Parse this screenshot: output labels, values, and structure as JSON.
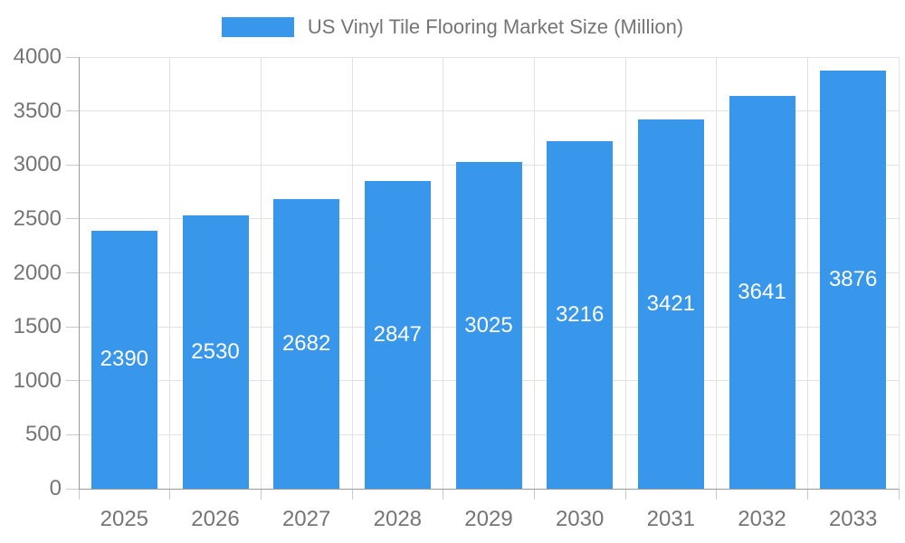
{
  "chart_data": {
    "type": "bar",
    "title": "US Vinyl Tile Flooring Market Size (Million)",
    "categories": [
      "2025",
      "2026",
      "2027",
      "2028",
      "2029",
      "2030",
      "2031",
      "2032",
      "2033"
    ],
    "values": [
      2390,
      2530,
      2682,
      2847,
      3025,
      3216,
      3421,
      3641,
      3876
    ],
    "value_labels": [
      "2390",
      "2530",
      "2682",
      "2847",
      "3025",
      "3216",
      "3421",
      "3641",
      "3876"
    ],
    "xlabel": "",
    "ylabel": "",
    "ylim": [
      0,
      4000
    ],
    "ytick_labels": [
      "0",
      "500",
      "1000",
      "1500",
      "2000",
      "2500",
      "3000",
      "3500",
      "4000"
    ],
    "grid": true,
    "legend_position": "top-center",
    "value_label_position": "inside-middle",
    "colors": {
      "bar": "#3897EA",
      "grid": "#E2E2E2",
      "axis_line": "#999999",
      "tick": "#C9C9C9",
      "axis_text": "#757575",
      "legend_text": "#757575",
      "value_label": "#FFFFFF",
      "background": "#FFFFFF"
    }
  }
}
